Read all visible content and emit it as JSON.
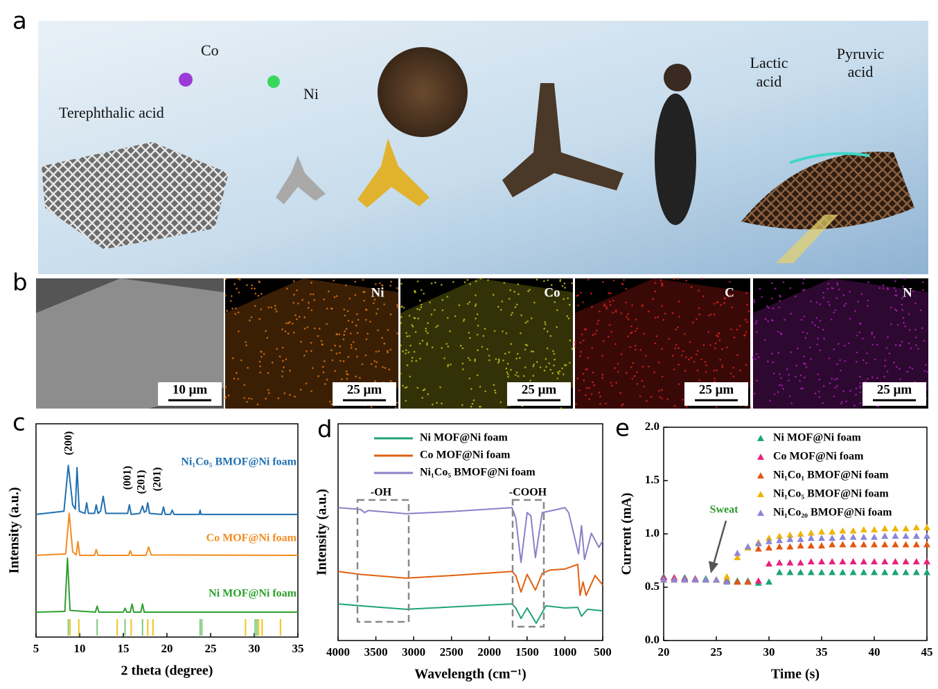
{
  "figure": {
    "panels": [
      "a",
      "b",
      "c",
      "d",
      "e"
    ],
    "a": {
      "reagents": [
        "Terephthalic acid",
        "Co",
        "Ni"
      ],
      "lactic_acid": [
        "Lactic",
        "acid"
      ],
      "pyruvic_acid": [
        "Pyruvic",
        "acid"
      ]
    },
    "b": {
      "maps": [
        "Ni",
        "Co",
        "C",
        "N"
      ],
      "scale_bars": [
        "10 μm",
        "25 μm",
        "25 μm",
        "25 μm",
        "25 μm"
      ]
    }
  },
  "chart_data": [
    {
      "type": "line",
      "xlabel": "2 theta (degree)",
      "ylabel": "Intensity (a.u.)",
      "xlim": [
        5,
        35
      ],
      "xticks": [
        5,
        10,
        15,
        20,
        25,
        30,
        35
      ],
      "ylim": [
        0,
        10
      ],
      "peak_labels": [
        "(200)",
        "(001)",
        "(201)",
        "(201)"
      ],
      "series": [
        {
          "name": "Ni₁Co₅ BMOF@Ni foam",
          "color": "#1f6fb2",
          "x": [
            5,
            8.2,
            8.7,
            9.2,
            9.5,
            9.7,
            9.95,
            10.6,
            10.8,
            11.0,
            11.7,
            11.9,
            12.1,
            12.4,
            12.7,
            13.0,
            15.5,
            15.7,
            15.9,
            16.9,
            17.2,
            17.4,
            17.6,
            17.8,
            18.0,
            19.4,
            19.6,
            19.8,
            20.4,
            20.6,
            20.8,
            23.7,
            23.8,
            23.9,
            35
          ],
          "values": [
            5.75,
            5.9,
            8.05,
            6.2,
            6.0,
            7.95,
            5.9,
            5.8,
            6.3,
            5.8,
            5.8,
            6.2,
            5.8,
            5.9,
            6.6,
            5.8,
            5.8,
            6.2,
            5.75,
            5.8,
            6.15,
            5.85,
            5.9,
            6.3,
            5.8,
            5.75,
            6.1,
            5.75,
            5.75,
            5.95,
            5.75,
            5.75,
            5.95,
            5.75,
            5.75
          ]
        },
        {
          "name": "Co MOF@Ni foam",
          "color": "#f28c1e",
          "x": [
            5,
            8.4,
            8.8,
            9.2,
            9.6,
            9.8,
            10.0,
            11.7,
            11.9,
            12.1,
            15.6,
            15.8,
            16.0,
            17.6,
            17.9,
            18.2,
            35
          ],
          "values": [
            3.83,
            3.9,
            5.81,
            4.0,
            3.85,
            4.48,
            3.83,
            3.83,
            4.1,
            3.83,
            3.83,
            4.05,
            3.83,
            3.83,
            4.22,
            3.85,
            3.83
          ]
        },
        {
          "name": "Ni MOF@Ni foam",
          "color": "#2ca02c",
          "x": [
            5,
            8.3,
            8.6,
            8.9,
            11.8,
            12.0,
            12.2,
            15.0,
            15.2,
            15.4,
            15.8,
            16.0,
            16.2,
            17.0,
            17.2,
            17.4,
            35
          ],
          "values": [
            1.17,
            1.2,
            3.7,
            1.25,
            1.17,
            1.45,
            1.17,
            1.17,
            1.35,
            1.17,
            1.17,
            1.55,
            1.17,
            1.17,
            1.55,
            1.17,
            1.17
          ]
        }
      ],
      "reference_lines": [
        {
          "color": "#7fc97f",
          "x": [
            8.7,
            12.0,
            15.2,
            17.2,
            23.8,
            24.0,
            30.1,
            30.3
          ]
        },
        {
          "color": "#f0c419",
          "x": [
            8.9,
            9.9,
            14.3,
            15.9,
            17.8,
            18.4,
            29.0,
            30.5,
            30.9,
            33.0
          ]
        }
      ]
    },
    {
      "type": "line",
      "xlabel": "Wavelength (cm⁻¹)",
      "ylabel": "Intensity (a.u.)",
      "xlim": [
        4000,
        500
      ],
      "xticks": [
        4000,
        3500,
        3000,
        2500,
        2000,
        1500,
        1000,
        500
      ],
      "ylim": [
        0,
        10
      ],
      "legend": "upper left",
      "annotations": [
        "-OH",
        "-COOH"
      ],
      "series": [
        {
          "name": "Ni MOF@Ni foam",
          "color": "#1fa37a",
          "x": [
            4000,
            3700,
            3100,
            2500,
            1700,
            1650,
            1580,
            1500,
            1380,
            1250,
            1000,
            830,
            780,
            700,
            500
          ],
          "values": [
            1.69,
            1.6,
            1.44,
            1.55,
            1.69,
            1.5,
            1.02,
            1.5,
            0.8,
            1.6,
            1.5,
            1.53,
            1.12,
            1.44,
            1.37
          ]
        },
        {
          "name": "Co MOF@Ni foam",
          "color": "#e0600f",
          "x": [
            4000,
            3700,
            3100,
            2500,
            1700,
            1650,
            1580,
            1500,
            1390,
            1300,
            1200,
            1000,
            830,
            800,
            760,
            720,
            600,
            500
          ],
          "values": [
            3.19,
            3.05,
            2.88,
            3.0,
            3.19,
            3.0,
            2.24,
            3.05,
            2.33,
            3.1,
            3.25,
            3.3,
            3.51,
            2.08,
            2.7,
            2.08,
            3.0,
            2.56
          ]
        },
        {
          "name": "Ni₁Co₅ BMOF@Ni foam",
          "color": "#8b7fc8",
          "x": [
            4000,
            3700,
            3650,
            3600,
            3100,
            2500,
            1700,
            1650,
            1580,
            1500,
            1450,
            1390,
            1300,
            1100,
            1000,
            950,
            820,
            780,
            740,
            650,
            550,
            500
          ],
          "values": [
            6.13,
            6.05,
            5.9,
            6.0,
            5.85,
            5.95,
            6.13,
            5.65,
            3.6,
            5.9,
            5.75,
            3.83,
            5.9,
            6.05,
            6.13,
            5.9,
            4.0,
            5.3,
            3.74,
            4.95,
            4.3,
            4.6
          ]
        }
      ]
    },
    {
      "type": "scatter",
      "xlabel": "Time (s)",
      "ylabel": "Current (mA)",
      "xlim": [
        20,
        45
      ],
      "xticks": [
        20,
        25,
        30,
        35,
        40,
        45
      ],
      "ylim": [
        0,
        2
      ],
      "yticks": [
        {
          "value": 0,
          "label": "0.0"
        },
        {
          "value": 0.5,
          "label": "0.5"
        },
        {
          "value": 1,
          "label": "1.0"
        },
        {
          "value": 1.5,
          "label": "1.5"
        },
        {
          "value": 2,
          "label": "2.0"
        }
      ],
      "legend": "upper right",
      "annotation": "Sweat",
      "x": [
        20,
        21,
        22,
        23,
        24,
        25,
        26,
        27,
        28,
        29,
        30,
        31,
        32,
        33,
        34,
        35,
        36,
        37,
        38,
        39,
        40,
        41,
        42,
        43,
        44,
        45
      ],
      "series": [
        {
          "name": "Ni MOF@Ni foam",
          "color": "#1aa37a",
          "values": [
            0.6,
            0.59,
            0.59,
            0.58,
            0.58,
            0.57,
            0.57,
            0.56,
            0.56,
            0.54,
            0.55,
            0.64,
            0.64,
            0.64,
            0.64,
            0.64,
            0.64,
            0.64,
            0.64,
            0.64,
            0.64,
            0.64,
            0.64,
            0.64,
            0.64,
            0.64
          ]
        },
        {
          "name": "Co MOF@Ni foam",
          "color": "#e8207a",
          "values": [
            0.59,
            0.59,
            0.58,
            0.58,
            0.57,
            0.57,
            0.56,
            0.55,
            0.55,
            0.56,
            0.72,
            0.73,
            0.73,
            0.73,
            0.74,
            0.74,
            0.74,
            0.74,
            0.74,
            0.74,
            0.74,
            0.74,
            0.74,
            0.74,
            0.74,
            0.74
          ]
        },
        {
          "name": "Ni₁Co₁ BMOF@Ni foam",
          "color": "#e5560f",
          "values": [
            0.57,
            0.57,
            0.57,
            0.57,
            0.57,
            0.57,
            0.56,
            0.55,
            0.55,
            0.86,
            0.87,
            0.88,
            0.88,
            0.89,
            0.89,
            0.89,
            0.9,
            0.9,
            0.9,
            0.9,
            0.9,
            0.9,
            0.9,
            0.9,
            0.9,
            0.9
          ]
        },
        {
          "name": "Ni₁Co₅ BMOF@Ni foam",
          "color": "#f0b400",
          "values": [
            0.57,
            0.57,
            0.57,
            0.57,
            0.57,
            0.57,
            0.6,
            0.78,
            0.87,
            0.92,
            0.96,
            0.98,
            0.99,
            1.0,
            1.01,
            1.02,
            1.02,
            1.03,
            1.03,
            1.04,
            1.04,
            1.05,
            1.05,
            1.05,
            1.06,
            1.06
          ]
        },
        {
          "name": "Ni₁Co₂₀ BMOF@Ni foam",
          "color": "#8b86d8",
          "values": [
            0.57,
            0.57,
            0.57,
            0.57,
            0.57,
            0.57,
            0.55,
            0.82,
            0.88,
            0.91,
            0.93,
            0.94,
            0.95,
            0.95,
            0.96,
            0.96,
            0.96,
            0.97,
            0.97,
            0.97,
            0.97,
            0.98,
            0.98,
            0.98,
            0.98,
            0.98
          ]
        }
      ]
    }
  ]
}
